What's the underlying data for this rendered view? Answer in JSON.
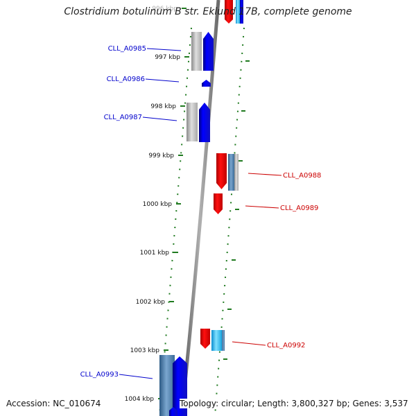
{
  "title": "Clostridium botulinum B str. Eklund 17B, complete genome",
  "footer": {
    "accession": "Accession: NC_010674",
    "topology": "Topology: circular; Length: 3,800,327 bp; Genes: 3,537"
  },
  "ticks": [
    "996 kbp",
    "997 kbp",
    "998 kbp",
    "999 kbp",
    "1000 kbp",
    "1001 kbp",
    "1002 kbp",
    "1003 kbp",
    "1004 kbp"
  ],
  "genes": [
    {
      "name": "CLL_A0985",
      "strand": "reverse"
    },
    {
      "name": "CLL_A0986",
      "strand": "reverse"
    },
    {
      "name": "CLL_A0987",
      "strand": "reverse"
    },
    {
      "name": "CLL_A0988",
      "strand": "forward"
    },
    {
      "name": "CLL_A0989",
      "strand": "forward"
    },
    {
      "name": "CLL_A0992",
      "strand": "forward"
    },
    {
      "name": "CLL_A0993",
      "strand": "reverse"
    }
  ],
  "colors": {
    "reverse_label": "#0000cc",
    "forward_label": "#cc0000",
    "backbone": "#8a8a8a",
    "tick": "#1f7a1f",
    "gene_blue": "#0000ee",
    "gene_red": "#ee0000",
    "gene_gray": "#b4b4b4",
    "gene_steel": "#4a7ca8",
    "gene_cyan": "#22b8f0"
  }
}
